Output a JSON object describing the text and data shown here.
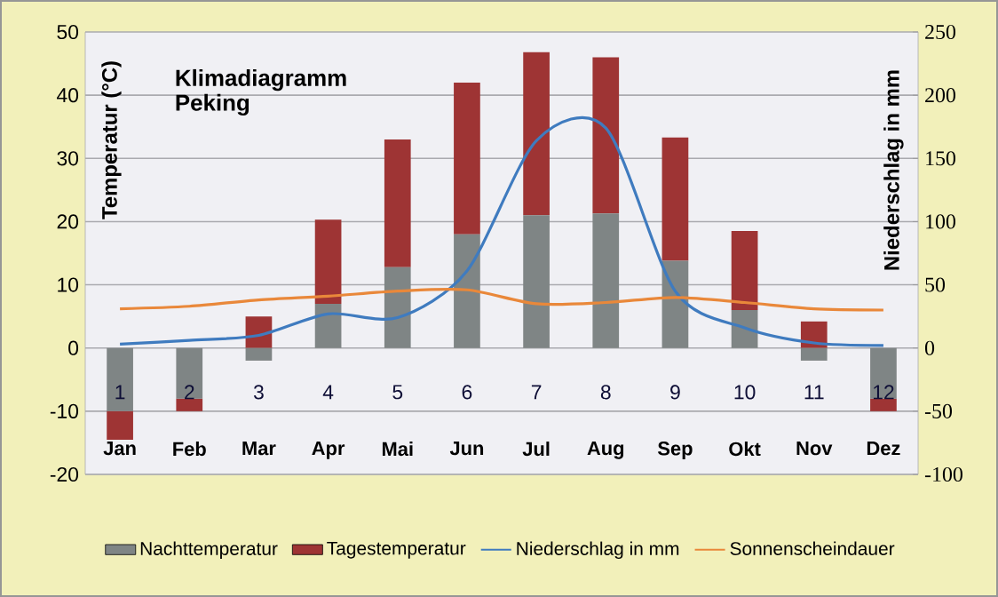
{
  "chart_data": {
    "type": "bar",
    "title": "Klimadiagramm Peking",
    "ylabel": "Temperatur (°C)",
    "y2label": "Niederschlag in mm",
    "categories": [
      "Jan",
      "Feb",
      "Mar",
      "Apr",
      "Mai",
      "Jun",
      "Jul",
      "Aug",
      "Sep",
      "Okt",
      "Nov",
      "Dez"
    ],
    "series": [
      {
        "name": "Nachttemperatur",
        "color": "#7f8585",
        "values": [
          -10,
          -8,
          -2,
          7,
          12.8,
          18,
          21,
          21.3,
          13.8,
          6,
          -2,
          -8
        ]
      },
      {
        "name": "Tagestemperatur",
        "color": "#9e3434",
        "values": [
          -4.5,
          -2,
          5,
          13.3,
          20.2,
          24,
          25.8,
          24.7,
          19.5,
          12.5,
          4.2,
          -2
        ]
      },
      {
        "name": "Niederschlag in mm",
        "type": "line",
        "axis": "y2",
        "color": "#3f7bbf",
        "values": [
          3,
          6,
          10,
          27,
          24,
          61,
          164,
          174,
          45,
          16,
          4,
          2
        ]
      },
      {
        "name": "Sonnenscheindauer",
        "type": "line",
        "axis": "y2",
        "color": "#e9883a",
        "values": [
          31,
          33,
          38,
          41,
          45,
          46,
          35,
          36,
          40,
          36,
          31,
          30
        ]
      }
    ],
    "ylim": [
      -20,
      50
    ],
    "yticks": [
      -20,
      -10,
      0,
      10,
      20,
      30,
      40,
      50
    ],
    "y2lim": [
      -100,
      250
    ],
    "y2ticks": [
      -100,
      -50,
      0,
      50,
      100,
      150,
      200,
      250
    ],
    "stacked": true,
    "grid": "y",
    "legend": "bottom",
    "annotations": [
      "1",
      "2",
      "3",
      "4",
      "5",
      "6",
      "7",
      "8",
      "9",
      "10",
      "11",
      "12"
    ]
  }
}
